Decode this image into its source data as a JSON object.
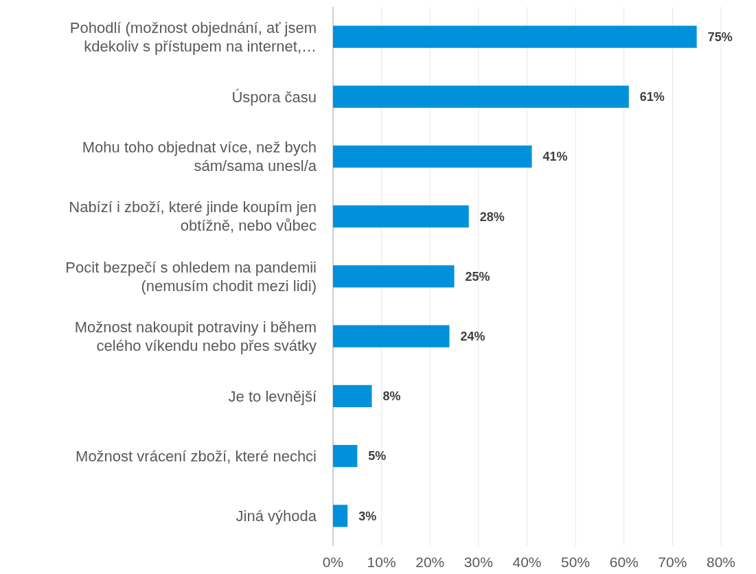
{
  "chart_data": {
    "type": "bar",
    "orientation": "horizontal",
    "categories": [
      "Pohodlí (možnost objednání, ať jsem kdekoliv s přístupem na internet,…",
      "Úspora času",
      "Mohu toho objednat více, než bych sám/sama unesl/a",
      "Nabízí i zboží, které jinde koupím jen obtížně, nebo vůbec",
      "Pocit bezpečí s ohledem na pandemii (nemusím chodit mezi lidi)",
      "Možnost nakoupit potraviny i během celého víkendu nebo přes svátky",
      "Je to levnější",
      "Možnost vrácení zboží, které nechci",
      "Jiná výhoda"
    ],
    "values": [
      75,
      61,
      41,
      28,
      25,
      24,
      8,
      5,
      3
    ],
    "value_labels": [
      "75%",
      "61%",
      "41%",
      "28%",
      "25%",
      "24%",
      "8%",
      "5%",
      "3%"
    ],
    "color": "#0091da",
    "xlim": [
      0,
      80
    ],
    "xticks": [
      {
        "value": 0,
        "label": "0%"
      },
      {
        "value": 10,
        "label": "10%"
      },
      {
        "value": 20,
        "label": "20%"
      },
      {
        "value": 30,
        "label": "30%"
      },
      {
        "value": 40,
        "label": "40%"
      },
      {
        "value": 50,
        "label": "50%"
      },
      {
        "value": 60,
        "label": "60%"
      },
      {
        "value": 70,
        "label": "70%"
      },
      {
        "value": 80,
        "label": "80%"
      }
    ],
    "grid": "x"
  }
}
